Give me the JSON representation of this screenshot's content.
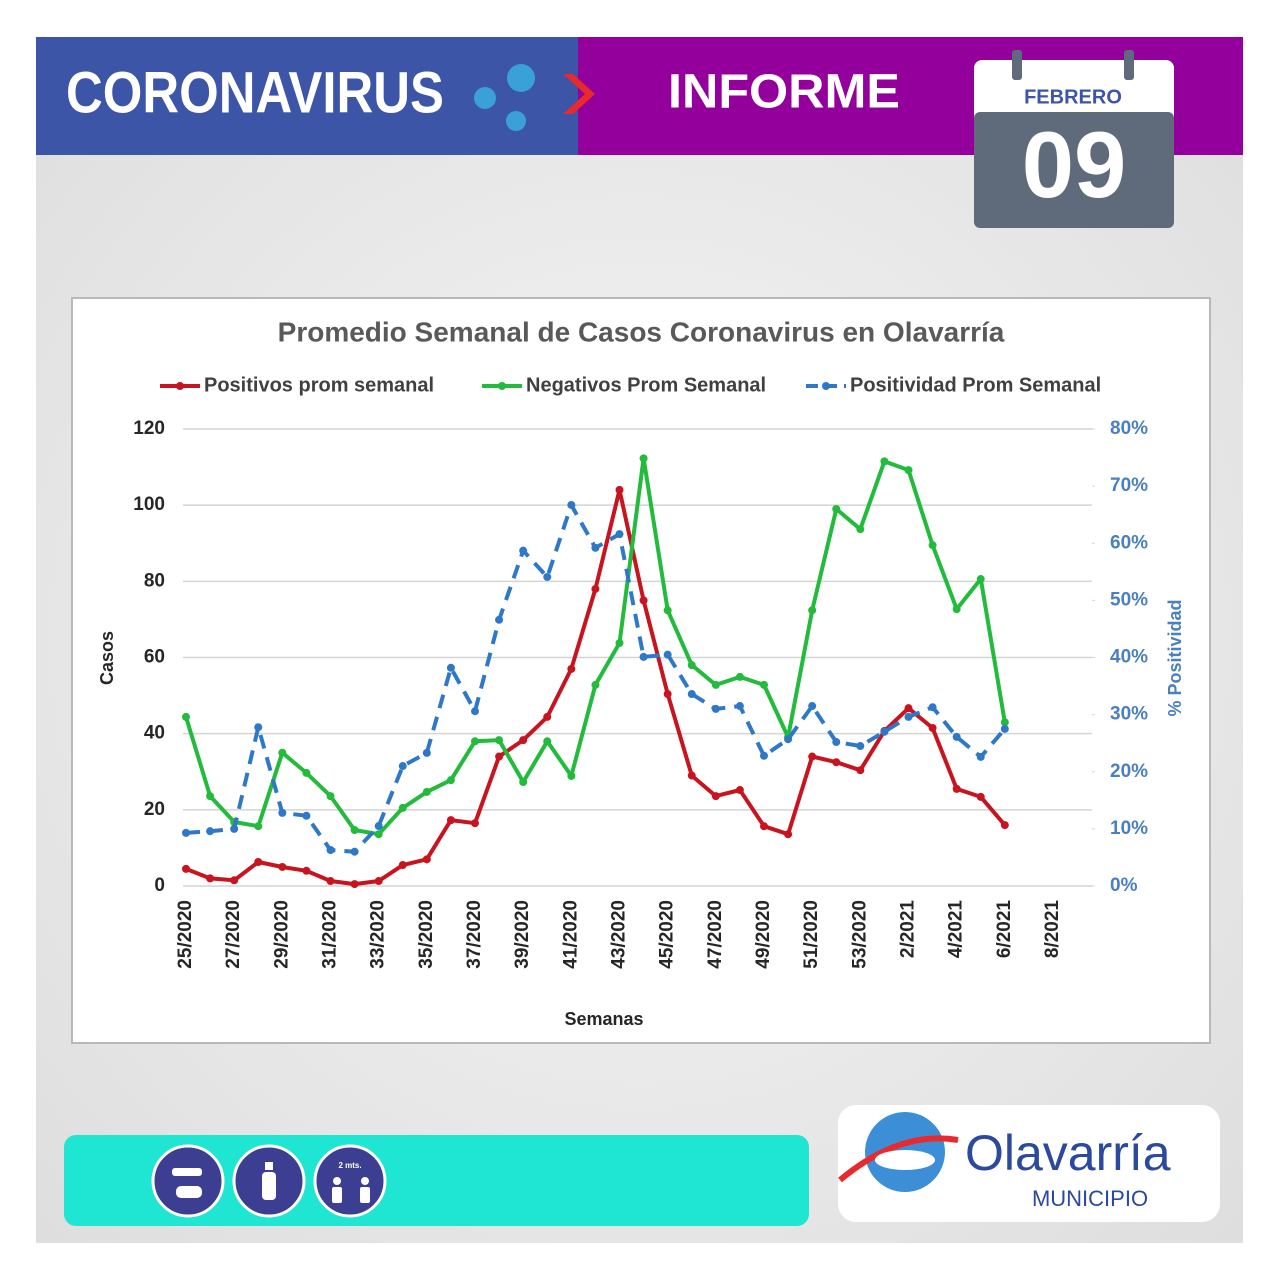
{
  "header": {
    "title": "CORONAVIRUS",
    "subtitle": "INFORME",
    "month": "FEBRERO",
    "day": "09"
  },
  "footer": {
    "distance": "2 mts.",
    "logo": "Olavarría",
    "logo_sub": "MUNICIPIO"
  },
  "chart_data": {
    "type": "line",
    "title": "Promedio Semanal de Casos Coronavirus en Olavarría",
    "xlabel": "Semanas",
    "ylabel": "Casos",
    "y2label": "% Positividad",
    "legend": "top",
    "grid": true,
    "categories": [
      "25/2020",
      null,
      "27/2020",
      null,
      "29/2020",
      null,
      "31/2020",
      null,
      "33/2020",
      null,
      "35/2020",
      null,
      "37/2020",
      null,
      "39/2020",
      null,
      "41/2020",
      null,
      "43/2020",
      null,
      "45/2020",
      null,
      "47/2020",
      null,
      "49/2020",
      null,
      "51/2020",
      null,
      "53/2020",
      null,
      "2/2021",
      null,
      "4/2021",
      null,
      "6/2021",
      null,
      "8/2021"
    ],
    "ylim": [
      0,
      120
    ],
    "yticks": [
      0,
      20,
      40,
      60,
      80,
      100,
      120
    ],
    "y2lim": [
      0,
      80
    ],
    "y2ticks": [
      {
        "value": 0,
        "label": "0%"
      },
      {
        "value": 10,
        "label": "10%"
      },
      {
        "value": 20,
        "label": "20%"
      },
      {
        "value": 30,
        "label": "30%"
      },
      {
        "value": 40,
        "label": "40%"
      },
      {
        "value": 50,
        "label": "50%"
      },
      {
        "value": 60,
        "label": "60%"
      },
      {
        "value": 70,
        "label": "70%"
      },
      {
        "value": 80,
        "label": "80%"
      }
    ],
    "series": [
      {
        "name": "Positivos prom semanal",
        "color": "#c8141e",
        "dashed": false,
        "values": [
          4.5,
          2,
          1.5,
          6.3,
          5,
          4,
          1.3,
          0.5,
          1.3,
          5.5,
          7,
          17.3,
          16.5,
          34,
          38.3,
          44.4,
          57,
          78,
          104,
          75,
          50.4,
          29,
          23.6,
          25.2,
          15.7,
          13.6,
          34,
          32.5,
          30.4,
          40.7,
          46.7,
          41.5,
          25.5,
          23.4,
          16,
          null,
          null
        ]
      },
      {
        "name": "Negativos Prom Semanal",
        "color": "#22bb3c",
        "dashed": false,
        "values": [
          44.4,
          23.6,
          16.8,
          15.7,
          35,
          29.7,
          23.6,
          14.7,
          13.6,
          20.5,
          24.7,
          27.8,
          38,
          38.3,
          27.3,
          38,
          28.9,
          52.8,
          63.8,
          112.3,
          72.4,
          58,
          52.8,
          54.9,
          52.8,
          39.1,
          72.4,
          99,
          93.7,
          111.5,
          109.2,
          89.5,
          72.7,
          80.6,
          43,
          null,
          null
        ]
      },
      {
        "name": "Positividad Prom Semanal",
        "color": "#2f78c8",
        "dashed": true,
        "axis": "y2",
        "values": [
          9.3,
          9.6,
          10,
          27.8,
          12.8,
          12.3,
          6.3,
          6,
          10.5,
          21,
          23.3,
          38.2,
          30.6,
          46.6,
          58.7,
          54.1,
          66.7,
          59.2,
          61.6,
          40.1,
          40.5,
          33.6,
          31,
          31.5,
          22.8,
          25.7,
          31.5,
          25.2,
          24.5,
          27,
          29.6,
          31.3,
          26.1,
          22.6,
          27.5,
          null,
          null
        ]
      }
    ]
  }
}
